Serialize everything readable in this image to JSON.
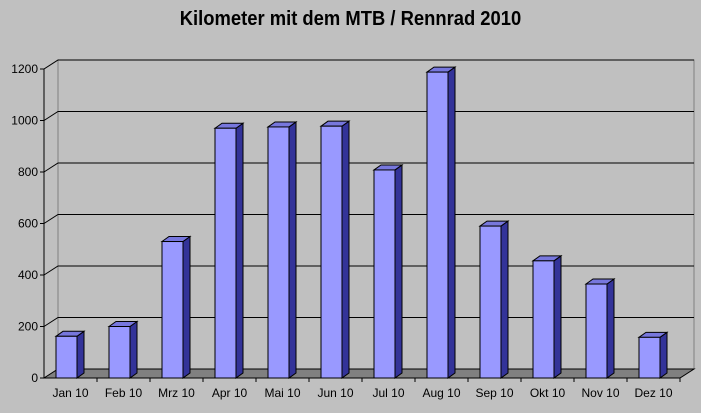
{
  "chart_data": {
    "type": "bar",
    "title": "Kilometer mit dem MTB / Rennrad 2010",
    "xlabel": "",
    "ylabel": "",
    "categories": [
      "Jan 10",
      "Feb 10",
      "Mrz 10",
      "Apr 10",
      "Mai 10",
      "Jun 10",
      "Jul 10",
      "Aug 10",
      "Sep 10",
      "Okt 10",
      "Nov 10",
      "Dez 10"
    ],
    "values": [
      162,
      200,
      530,
      970,
      975,
      978,
      808,
      1188,
      590,
      455,
      365,
      158
    ],
    "ylim": [
      0,
      1200
    ],
    "yticks": [
      0,
      200,
      400,
      600,
      800,
      1000,
      1200
    ],
    "grid": true,
    "three_d": true,
    "legend": "none",
    "colors": {
      "bar_front": "#9999ff",
      "bar_top": "#7777dd",
      "bar_side": "#333399",
      "background": "#c0c0c0",
      "wall": "#c0c0c0",
      "floor": "#808080",
      "gridline": "#000000"
    }
  }
}
